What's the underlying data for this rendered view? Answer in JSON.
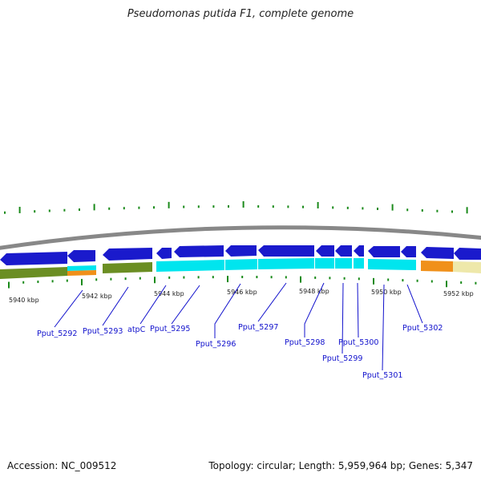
{
  "title": "Pseudomonas putida F1, complete genome",
  "footer": {
    "accession": "Accession: NC_009512",
    "topology": "Topology: circular; Length: 5,959,964 bp; Genes: 5,347"
  },
  "colors": {
    "backbone": "#888888",
    "forward_gene": "#1a1acc",
    "feature_band": "#00e5ee",
    "olive_band": "#6b8e23",
    "orange_band": "#f0901a",
    "khaki_band": "#eee8aa",
    "tick_mark": "#1a8a1a",
    "label_line": "#1010cc"
  },
  "scale_labels": [
    "5940 kbp",
    "5942 kbp",
    "5944 kbp",
    "5946 kbp",
    "5948 kbp",
    "5950 kbp",
    "5952 kbp"
  ],
  "gene_labels": [
    "Pput_5292",
    "Pput_5293",
    "atpC",
    "Pput_5295",
    "Pput_5296",
    "Pput_5297",
    "Pput_5298",
    "Pput_5299",
    "Pput_5300",
    "Pput_5301",
    "Pput_5302"
  ]
}
